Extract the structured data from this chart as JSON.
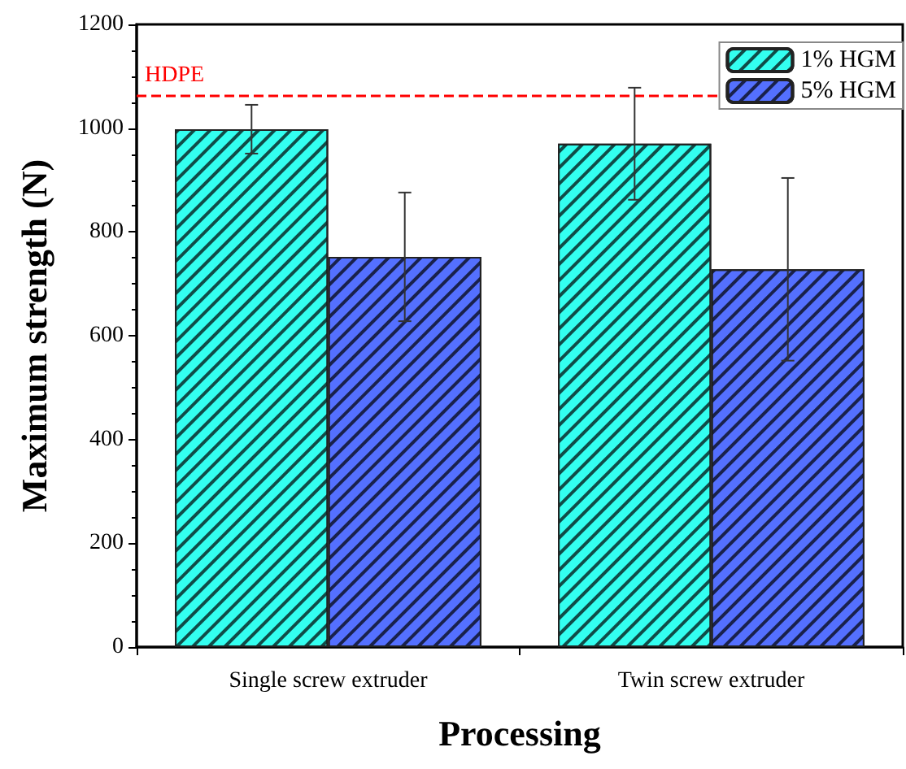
{
  "chart_data": {
    "type": "bar",
    "xlabel": "Processing",
    "ylabel": "Maximum strength (N)",
    "categories": [
      "Single screw extruder",
      "Twin screw extruder"
    ],
    "series": [
      {
        "name": "1% HGM",
        "color": "#33fff0",
        "values": [
          998,
          970
        ],
        "errors": [
          47,
          108
        ]
      },
      {
        "name": "5% HGM",
        "color": "#5470ff",
        "values": [
          752,
          728
        ],
        "errors": [
          124,
          176
        ]
      }
    ],
    "ylim": [
      0,
      1200
    ],
    "yticks": [
      0,
      200,
      400,
      600,
      800,
      1000,
      1200
    ],
    "ref_lines": [
      {
        "axis": "y",
        "value": 1064,
        "label": "HDPE",
        "color": "#ff0000",
        "line_style": "dashed"
      }
    ],
    "grid": false,
    "legend": "top right"
  }
}
